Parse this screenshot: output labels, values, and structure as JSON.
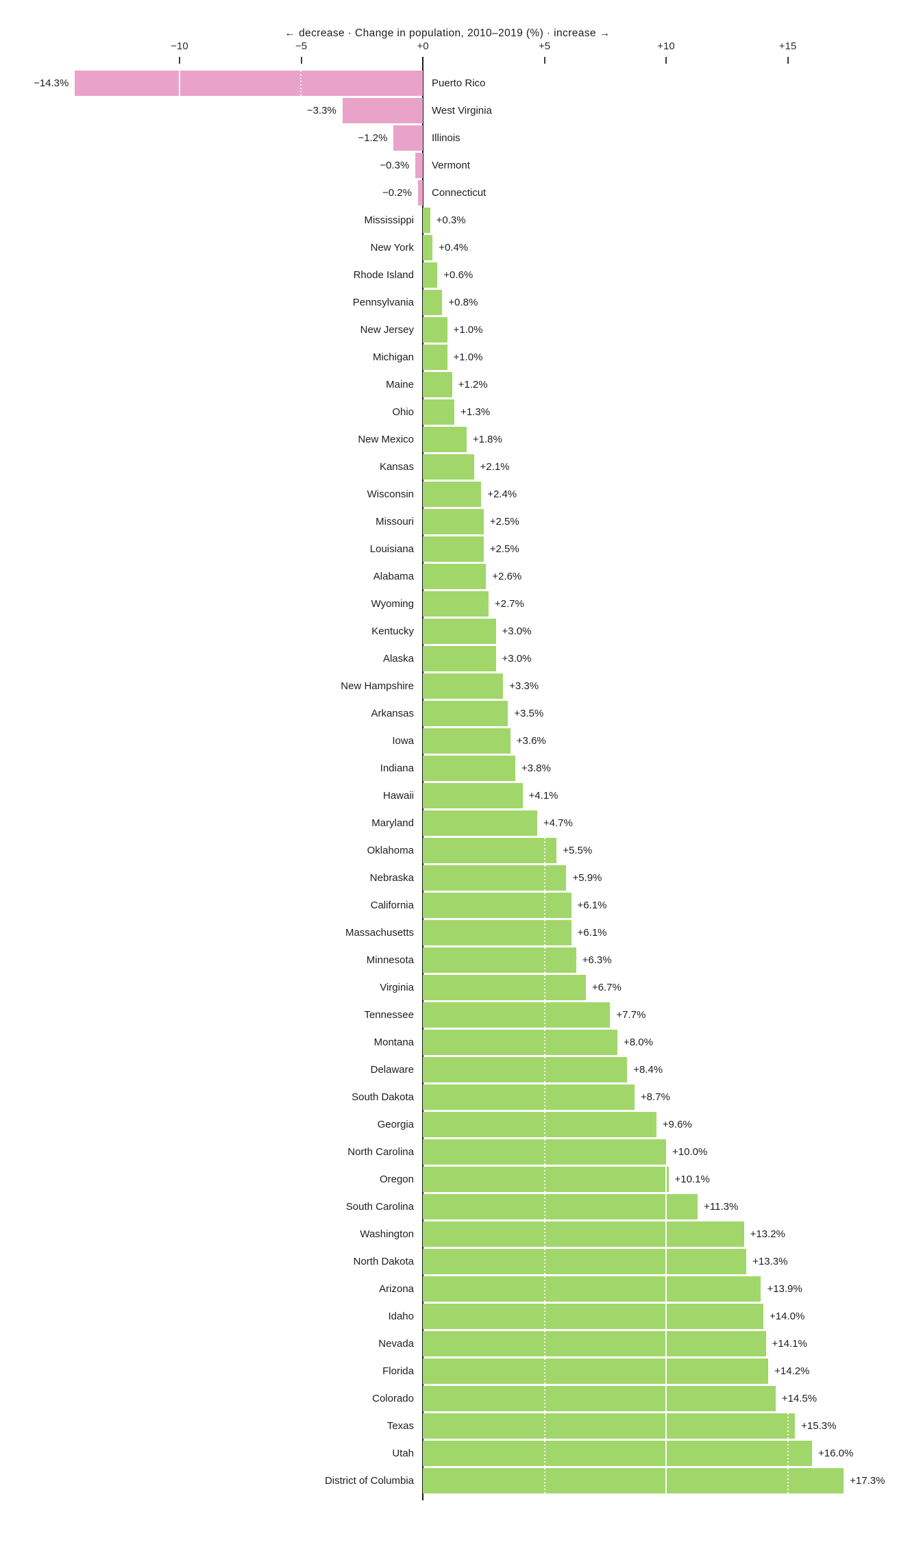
{
  "title": "← decrease · Change in population, 2010–2019 (%) · increase →",
  "colors": {
    "negative_bar": "#e9a3c9",
    "positive_bar": "#a1d76a",
    "axis": "#1a1a1a",
    "text": "#1d1d1f",
    "gridline": "#ffffff"
  },
  "axis": {
    "ticks": [
      {
        "value": -10,
        "label": "−10"
      },
      {
        "value": -5,
        "label": "−5"
      },
      {
        "value": 0,
        "label": "+0"
      },
      {
        "value": 5,
        "label": "+5"
      },
      {
        "value": 10,
        "label": "+10"
      },
      {
        "value": 15,
        "label": "+15"
      }
    ]
  },
  "chart_data": {
    "type": "bar",
    "orientation": "horizontal-diverging",
    "title": "Change in population, 2010–2019 (%)",
    "xlabel": "Change in population, 2010–2019 (%)",
    "xlim": [
      -17.4,
      20.5
    ],
    "grid": "white lines over bars at multiples of 5",
    "legend": "none",
    "rows": [
      {
        "state": "Puerto Rico",
        "value": -14.3,
        "label": "−14.3%"
      },
      {
        "state": "West Virginia",
        "value": -3.3,
        "label": "−3.3%"
      },
      {
        "state": "Illinois",
        "value": -1.2,
        "label": "−1.2%"
      },
      {
        "state": "Vermont",
        "value": -0.3,
        "label": "−0.3%"
      },
      {
        "state": "Connecticut",
        "value": -0.2,
        "label": "−0.2%"
      },
      {
        "state": "Mississippi",
        "value": 0.3,
        "label": "+0.3%"
      },
      {
        "state": "New York",
        "value": 0.4,
        "label": "+0.4%"
      },
      {
        "state": "Rhode Island",
        "value": 0.6,
        "label": "+0.6%"
      },
      {
        "state": "Pennsylvania",
        "value": 0.8,
        "label": "+0.8%"
      },
      {
        "state": "New Jersey",
        "value": 1.0,
        "label": "+1.0%"
      },
      {
        "state": "Michigan",
        "value": 1.0,
        "label": "+1.0%"
      },
      {
        "state": "Maine",
        "value": 1.2,
        "label": "+1.2%"
      },
      {
        "state": "Ohio",
        "value": 1.3,
        "label": "+1.3%"
      },
      {
        "state": "New Mexico",
        "value": 1.8,
        "label": "+1.8%"
      },
      {
        "state": "Kansas",
        "value": 2.1,
        "label": "+2.1%"
      },
      {
        "state": "Wisconsin",
        "value": 2.4,
        "label": "+2.4%"
      },
      {
        "state": "Missouri",
        "value": 2.5,
        "label": "+2.5%"
      },
      {
        "state": "Louisiana",
        "value": 2.5,
        "label": "+2.5%"
      },
      {
        "state": "Alabama",
        "value": 2.6,
        "label": "+2.6%"
      },
      {
        "state": "Wyoming",
        "value": 2.7,
        "label": "+2.7%"
      },
      {
        "state": "Kentucky",
        "value": 3.0,
        "label": "+3.0%"
      },
      {
        "state": "Alaska",
        "value": 3.0,
        "label": "+3.0%"
      },
      {
        "state": "New Hampshire",
        "value": 3.3,
        "label": "+3.3%"
      },
      {
        "state": "Arkansas",
        "value": 3.5,
        "label": "+3.5%"
      },
      {
        "state": "Iowa",
        "value": 3.6,
        "label": "+3.6%"
      },
      {
        "state": "Indiana",
        "value": 3.8,
        "label": "+3.8%"
      },
      {
        "state": "Hawaii",
        "value": 4.1,
        "label": "+4.1%"
      },
      {
        "state": "Maryland",
        "value": 4.7,
        "label": "+4.7%"
      },
      {
        "state": "Oklahoma",
        "value": 5.5,
        "label": "+5.5%"
      },
      {
        "state": "Nebraska",
        "value": 5.9,
        "label": "+5.9%"
      },
      {
        "state": "California",
        "value": 6.1,
        "label": "+6.1%"
      },
      {
        "state": "Massachusetts",
        "value": 6.1,
        "label": "+6.1%"
      },
      {
        "state": "Minnesota",
        "value": 6.3,
        "label": "+6.3%"
      },
      {
        "state": "Virginia",
        "value": 6.7,
        "label": "+6.7%"
      },
      {
        "state": "Tennessee",
        "value": 7.7,
        "label": "+7.7%"
      },
      {
        "state": "Montana",
        "value": 8.0,
        "label": "+8.0%"
      },
      {
        "state": "Delaware",
        "value": 8.4,
        "label": "+8.4%"
      },
      {
        "state": "South Dakota",
        "value": 8.7,
        "label": "+8.7%"
      },
      {
        "state": "Georgia",
        "value": 9.6,
        "label": "+9.6%"
      },
      {
        "state": "North Carolina",
        "value": 10.0,
        "label": "+10.0%"
      },
      {
        "state": "Oregon",
        "value": 10.1,
        "label": "+10.1%"
      },
      {
        "state": "South Carolina",
        "value": 11.3,
        "label": "+11.3%"
      },
      {
        "state": "Washington",
        "value": 13.2,
        "label": "+13.2%"
      },
      {
        "state": "North Dakota",
        "value": 13.3,
        "label": "+13.3%"
      },
      {
        "state": "Arizona",
        "value": 13.9,
        "label": "+13.9%"
      },
      {
        "state": "Idaho",
        "value": 14.0,
        "label": "+14.0%"
      },
      {
        "state": "Nevada",
        "value": 14.1,
        "label": "+14.1%"
      },
      {
        "state": "Florida",
        "value": 14.2,
        "label": "+14.2%"
      },
      {
        "state": "Colorado",
        "value": 14.5,
        "label": "+14.5%"
      },
      {
        "state": "Texas",
        "value": 15.3,
        "label": "+15.3%"
      },
      {
        "state": "Utah",
        "value": 16.0,
        "label": "+16.0%"
      },
      {
        "state": "District of Columbia",
        "value": 17.3,
        "label": "+17.3%"
      }
    ]
  }
}
